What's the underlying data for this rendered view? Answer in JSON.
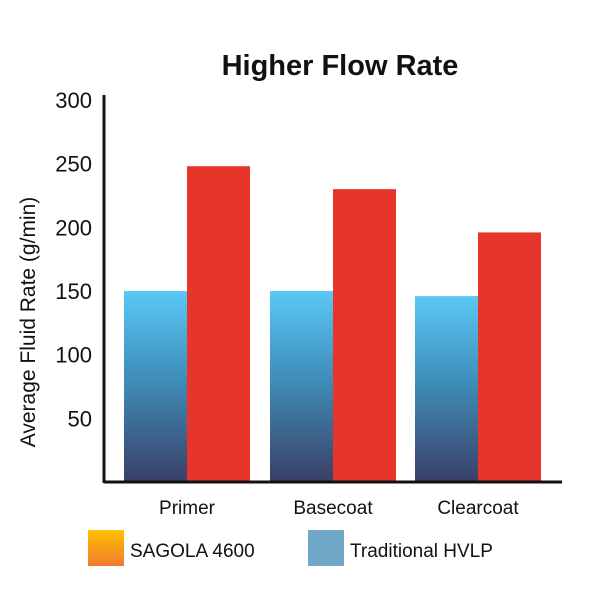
{
  "chart_data": {
    "type": "bar",
    "title": "Higher Flow Rate",
    "xlabel": "",
    "ylabel": "Average Fluid Rate (g/min)",
    "ylim": [
      0,
      300
    ],
    "yticks": [
      50,
      100,
      150,
      200,
      250,
      300
    ],
    "categories": [
      "Primer",
      "Basecoat",
      "Clearcoat"
    ],
    "series": [
      {
        "name": "Traditional HVLP",
        "values": [
          150,
          150,
          146
        ],
        "color_top": "#5ac8f5",
        "color_bottom": "#3b3f66"
      },
      {
        "name": "SAGOLA 4600",
        "values": [
          248,
          230,
          196
        ],
        "color_top": "#ffc800",
        "color_bottom": "#e8352c"
      }
    ],
    "legend": {
      "placement": "bottom",
      "order": [
        "SAGOLA 4600",
        "Traditional HVLP"
      ],
      "swatch_colors": {
        "SAGOLA 4600": "#f5a623",
        "Traditional HVLP": "#6fa7c6"
      }
    },
    "grid": false
  }
}
